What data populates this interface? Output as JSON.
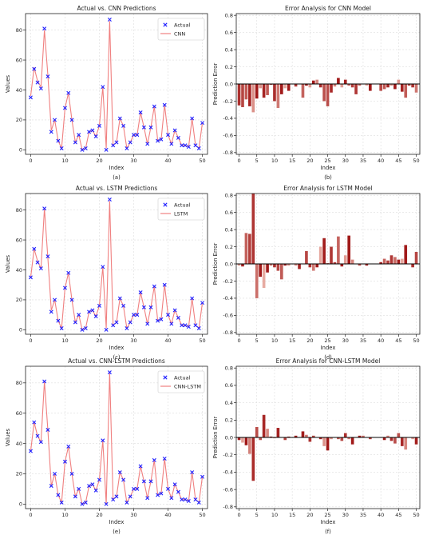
{
  "chart_data": [
    {
      "id": "a",
      "type": "line",
      "title": "Actual vs. CNN Predictions",
      "xlabel": "Index",
      "ylabel": "Values",
      "caption": "(a)",
      "xlim": [
        -1.5,
        51.5
      ],
      "ylim": [
        -3,
        91
      ],
      "xticks": [
        0,
        10,
        20,
        30,
        40,
        50
      ],
      "yticks": [
        0,
        20,
        40,
        60,
        80
      ],
      "legend": "top-right",
      "legend_labels": [
        "Actual",
        "CNN"
      ],
      "actual": [
        35,
        54,
        45,
        41,
        81,
        49,
        12,
        20,
        6,
        1,
        28,
        38,
        20,
        5,
        10,
        0,
        1,
        12,
        13,
        9,
        16,
        42,
        0,
        87,
        3,
        5,
        21,
        16,
        1,
        5,
        10,
        10,
        25,
        15,
        4,
        15,
        29,
        6,
        7,
        30,
        10,
        4,
        13,
        8,
        3,
        3,
        2,
        21,
        3,
        1,
        18
      ],
      "pred": [
        36,
        55,
        46,
        42,
        80,
        50,
        13,
        20,
        6,
        1,
        28,
        38,
        20,
        5,
        10,
        0,
        1,
        12,
        13,
        9,
        16,
        42,
        1,
        86,
        3,
        5,
        21,
        16,
        1,
        5,
        10,
        10,
        25,
        15,
        4,
        15,
        29,
        6,
        7,
        30,
        10,
        4,
        13,
        8,
        3,
        3,
        2,
        21,
        3,
        1,
        18
      ]
    },
    {
      "id": "b",
      "type": "bar",
      "title": "Error Analysis for CNN Model",
      "xlabel": "Index",
      "ylabel": "Prediction Error",
      "caption": "(b)",
      "xlim": [
        -0.8,
        51.0
      ],
      "ylim": [
        -0.82,
        0.82
      ],
      "xticks": [
        0,
        5,
        10,
        15,
        20,
        25,
        30,
        35,
        40,
        45,
        50
      ],
      "yticks": [
        -0.8,
        -0.6,
        -0.4,
        -0.2,
        0.0,
        0.2,
        0.4,
        0.6,
        0.8
      ],
      "values": [
        -0.25,
        -0.27,
        -0.18,
        -0.26,
        -0.33,
        -0.17,
        -0.05,
        -0.16,
        -0.13,
        -0.01,
        -0.2,
        -0.28,
        -0.12,
        -0.05,
        -0.08,
        0.0,
        -0.03,
        0.0,
        -0.16,
        -0.02,
        -0.04,
        0.04,
        0.05,
        -0.04,
        -0.2,
        -0.26,
        -0.1,
        -0.03,
        0.07,
        -0.04,
        0.05,
        -0.02,
        -0.04,
        -0.12,
        -0.02,
        0.0,
        -0.02,
        -0.08,
        0.0,
        0.0,
        -0.08,
        -0.06,
        -0.04,
        -0.02,
        -0.06,
        0.05,
        -0.09,
        -0.16,
        -0.02,
        -0.04,
        -0.1
      ]
    },
    {
      "id": "c",
      "type": "line",
      "title": "Actual vs. LSTM Predictions",
      "xlabel": "Index",
      "ylabel": "Values",
      "caption": "(c)",
      "xlim": [
        -1.5,
        51.5
      ],
      "ylim": [
        -3,
        91
      ],
      "xticks": [
        0,
        10,
        20,
        30,
        40,
        50
      ],
      "yticks": [
        0,
        20,
        40,
        60,
        80
      ],
      "legend": "top-right",
      "legend_labels": [
        "Actual",
        "LSTM"
      ],
      "actual": [
        35,
        54,
        45,
        41,
        81,
        49,
        12,
        20,
        6,
        1,
        28,
        38,
        20,
        5,
        10,
        0,
        1,
        12,
        13,
        9,
        16,
        42,
        0,
        87,
        3,
        5,
        21,
        16,
        1,
        5,
        10,
        10,
        25,
        15,
        4,
        15,
        29,
        6,
        7,
        30,
        10,
        4,
        13,
        8,
        3,
        3,
        2,
        21,
        3,
        1,
        18
      ],
      "pred": [
        35,
        54,
        46,
        41,
        81,
        48,
        13,
        20,
        6,
        1,
        28,
        38,
        20,
        5,
        10,
        0,
        1,
        12,
        13,
        9,
        16,
        42,
        1,
        86,
        3,
        5,
        21,
        16,
        1,
        5,
        10,
        10,
        25,
        15,
        4,
        15,
        29,
        6,
        7,
        30,
        10,
        4,
        13,
        8,
        3,
        3,
        2,
        21,
        3,
        1,
        18
      ]
    },
    {
      "id": "d",
      "type": "bar",
      "title": "Error Analysis for LSTM Model",
      "xlabel": "Index",
      "ylabel": "Prediction Error",
      "caption": "(d)",
      "xlim": [
        -0.8,
        51.0
      ],
      "ylim": [
        -0.82,
        0.82
      ],
      "xticks": [
        0,
        5,
        10,
        15,
        20,
        25,
        30,
        35,
        40,
        45,
        50
      ],
      "yticks": [
        -0.8,
        -0.6,
        -0.4,
        -0.2,
        0.0,
        0.2,
        0.4,
        0.6,
        0.8
      ],
      "values": [
        -0.02,
        -0.03,
        0.36,
        0.35,
        0.82,
        -0.4,
        -0.15,
        -0.28,
        -0.1,
        -0.02,
        -0.04,
        -0.08,
        -0.18,
        -0.02,
        -0.02,
        0.0,
        -0.02,
        -0.06,
        0.0,
        0.15,
        -0.04,
        -0.08,
        -0.04,
        0.2,
        0.3,
        0.01,
        0.2,
        0.02,
        0.32,
        -0.03,
        0.1,
        0.33,
        0.05,
        0.0,
        -0.02,
        0.0,
        -0.02,
        0.0,
        0.0,
        0.0,
        0.02,
        0.06,
        0.04,
        0.1,
        0.08,
        0.05,
        0.06,
        0.22,
        0.0,
        -0.04,
        0.14
      ]
    },
    {
      "id": "e",
      "type": "line",
      "title": "Actual vs. CNN-LSTM Predictions",
      "xlabel": "Index",
      "ylabel": "Values",
      "caption": "(e)",
      "xlim": [
        -1.5,
        51.5
      ],
      "ylim": [
        -3,
        91
      ],
      "xticks": [
        0,
        10,
        20,
        30,
        40,
        50
      ],
      "yticks": [
        0,
        20,
        40,
        60,
        80
      ],
      "legend": "top-right",
      "legend_labels": [
        "Actual",
        "CNN-LSTM"
      ],
      "actual": [
        35,
        54,
        45,
        41,
        81,
        49,
        12,
        20,
        6,
        1,
        28,
        38,
        20,
        5,
        10,
        0,
        1,
        12,
        13,
        9,
        16,
        42,
        0,
        87,
        3,
        5,
        21,
        16,
        1,
        5,
        10,
        10,
        25,
        15,
        4,
        15,
        29,
        6,
        7,
        30,
        10,
        4,
        13,
        8,
        3,
        3,
        2,
        21,
        3,
        1,
        18
      ],
      "pred": [
        35,
        54,
        45,
        41,
        81,
        49,
        12,
        20,
        6,
        1,
        28,
        38,
        20,
        5,
        10,
        0,
        1,
        12,
        13,
        9,
        16,
        42,
        0,
        87,
        3,
        5,
        21,
        16,
        1,
        5,
        10,
        10,
        25,
        15,
        4,
        15,
        29,
        6,
        7,
        30,
        10,
        4,
        13,
        8,
        3,
        3,
        2,
        21,
        3,
        1,
        18
      ]
    },
    {
      "id": "f",
      "type": "bar",
      "title": "Error Analysis for CNN-LSTM Model",
      "xlabel": "Index",
      "ylabel": "Prediction Error",
      "caption": "(f)",
      "xlim": [
        -0.8,
        51.0
      ],
      "ylim": [
        -0.82,
        0.82
      ],
      "xticks": [
        0,
        5,
        10,
        15,
        20,
        25,
        30,
        35,
        40,
        45,
        50
      ],
      "yticks": [
        -0.8,
        -0.6,
        -0.4,
        -0.2,
        0.0,
        0.2,
        0.4,
        0.6,
        0.8
      ],
      "values": [
        -0.03,
        -0.06,
        -0.09,
        -0.19,
        -0.5,
        0.12,
        -0.03,
        0.26,
        0.1,
        0.01,
        -0.01,
        0.11,
        0.0,
        -0.03,
        0.01,
        0.0,
        0.02,
        0.0,
        0.07,
        0.03,
        -0.05,
        0.02,
        0.0,
        -0.02,
        -0.1,
        -0.15,
        -0.02,
        0.0,
        -0.02,
        -0.04,
        0.05,
        -0.02,
        -0.08,
        0.0,
        0.02,
        0.02,
        0.0,
        -0.02,
        0.0,
        0.0,
        0.0,
        -0.03,
        0.02,
        -0.04,
        -0.07,
        0.05,
        -0.1,
        -0.14,
        0.0,
        -0.02,
        -0.08
      ]
    }
  ],
  "colors": {
    "actual_marker": "#1f1fff",
    "prediction_line": "#f08080",
    "bar_dark": "#a01818",
    "bar_light": "#f6c9bd",
    "zero_line": "#000000",
    "grid": "#dddddd"
  }
}
